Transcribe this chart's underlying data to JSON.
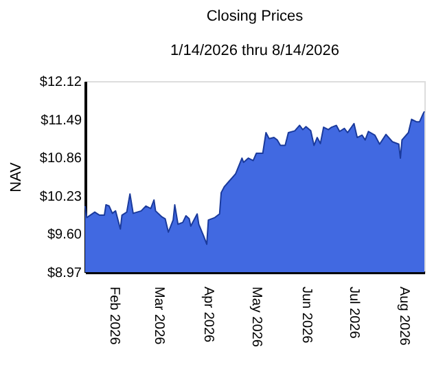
{
  "chart_data": {
    "type": "area",
    "title": "Closing Prices",
    "subtitle": "1/14/2026 thru 8/14/2026",
    "ylabel": "NAV",
    "x": [
      "2026-01-14",
      "2026-01-15",
      "2026-01-20",
      "2026-01-23",
      "2026-01-26",
      "2026-01-27",
      "2026-01-29",
      "2026-01-31",
      "2026-02-02",
      "2026-02-05",
      "2026-02-06",
      "2026-02-09",
      "2026-02-11",
      "2026-02-13",
      "2026-02-18",
      "2026-02-21",
      "2026-02-24",
      "2026-02-26",
      "2026-02-27",
      "2026-03-03",
      "2026-03-05",
      "2026-03-07",
      "2026-03-10",
      "2026-03-11",
      "2026-03-13",
      "2026-03-16",
      "2026-03-18",
      "2026-03-20",
      "2026-03-21",
      "2026-03-25",
      "2026-03-26",
      "2026-03-29",
      "2026-03-31",
      "2026-04-01",
      "2026-04-05",
      "2026-04-08",
      "2026-04-09",
      "2026-04-11",
      "2026-04-13",
      "2026-04-18",
      "2026-04-22",
      "2026-04-23",
      "2026-04-26",
      "2026-04-29",
      "2026-05-01",
      "2026-05-05",
      "2026-05-07",
      "2026-05-09",
      "2026-05-12",
      "2026-05-14",
      "2026-05-16",
      "2026-05-19",
      "2026-05-21",
      "2026-05-25",
      "2026-05-28",
      "2026-05-30",
      "2026-06-01",
      "2026-06-04",
      "2026-06-06",
      "2026-06-08",
      "2026-06-10",
      "2026-06-12",
      "2026-06-15",
      "2026-06-17",
      "2026-06-20",
      "2026-06-22",
      "2026-06-25",
      "2026-06-27",
      "2026-07-01",
      "2026-07-03",
      "2026-07-06",
      "2026-07-08",
      "2026-07-10",
      "2026-07-14",
      "2026-07-17",
      "2026-07-21",
      "2026-07-25",
      "2026-07-29",
      "2026-07-30",
      "2026-07-31",
      "2026-08-04",
      "2026-08-06",
      "2026-08-09",
      "2026-08-11",
      "2026-08-13",
      "2026-08-14"
    ],
    "series": [
      {
        "color": "#4169e1",
        "values": [
          10.06,
          9.87,
          9.96,
          9.91,
          9.91,
          10.08,
          10.06,
          9.94,
          9.98,
          9.68,
          9.91,
          9.96,
          10.26,
          9.94,
          9.98,
          10.06,
          10.02,
          10.16,
          9.98,
          9.88,
          9.85,
          9.63,
          9.83,
          10.08,
          9.76,
          9.79,
          9.9,
          9.85,
          9.73,
          9.93,
          9.76,
          9.57,
          9.43,
          9.83,
          9.87,
          9.93,
          10.28,
          10.38,
          10.44,
          10.59,
          10.85,
          10.78,
          10.85,
          10.81,
          10.93,
          10.93,
          11.27,
          11.17,
          11.19,
          11.15,
          11.06,
          11.06,
          11.27,
          11.3,
          11.39,
          11.32,
          11.37,
          11.3,
          11.06,
          11.19,
          11.09,
          11.36,
          11.32,
          11.36,
          11.39,
          11.29,
          11.34,
          11.27,
          11.42,
          11.19,
          11.23,
          11.15,
          11.29,
          11.23,
          11.08,
          11.24,
          11.12,
          11.08,
          10.85,
          11.15,
          11.27,
          11.49,
          11.45,
          11.45,
          11.57,
          11.62
        ]
      }
    ],
    "xlim": [
      "2026-01-14",
      "2026-08-14"
    ],
    "xticks": [
      {
        "value": "2026-02-01",
        "label": "Feb  2026"
      },
      {
        "value": "2026-03-01",
        "label": "Mar  2026"
      },
      {
        "value": "2026-04-01",
        "label": "Apr  2026"
      },
      {
        "value": "2026-05-01",
        "label": "May  2026"
      },
      {
        "value": "2026-06-01",
        "label": "Jun  2026"
      },
      {
        "value": "2026-07-01",
        "label": "Jul  2026"
      },
      {
        "value": "2026-08-01",
        "label": "Aug  2026"
      }
    ],
    "ylim": [
      8.97,
      12.12
    ],
    "yticks": [
      {
        "value": 8.97,
        "label": "$8.97"
      },
      {
        "value": 9.6,
        "label": "$9.60"
      },
      {
        "value": 10.23,
        "label": "$10.23"
      },
      {
        "value": 10.86,
        "label": "$10.86"
      },
      {
        "value": 11.49,
        "label": "$11.49"
      },
      {
        "value": 12.12,
        "label": "$12.12"
      }
    ],
    "grid": false
  }
}
